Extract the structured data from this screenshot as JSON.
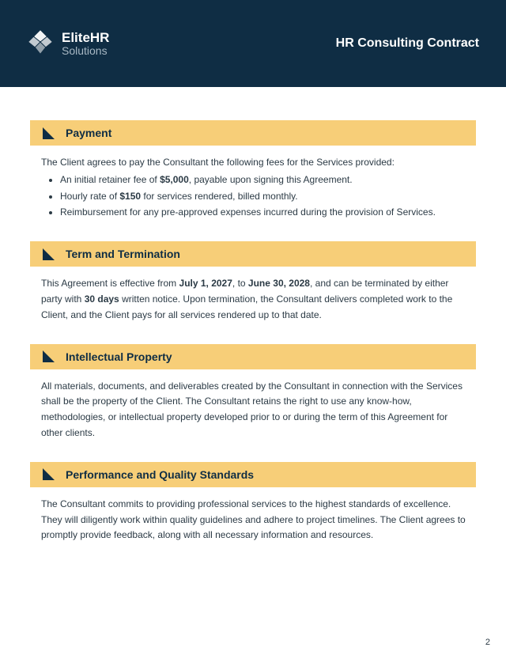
{
  "colors": {
    "header_bg": "#0f2d44",
    "accent_bg": "#f7ce78",
    "triangle": "#0f2d44",
    "text": "#2b3a45",
    "white": "#ffffff",
    "brand_sub": "#a8b8c4"
  },
  "header": {
    "brand_main": "EliteHR",
    "brand_sub": "Solutions",
    "doc_title": "HR Consulting Contract"
  },
  "sections": [
    {
      "title": "Payment",
      "intro": "The Client agrees to pay the Consultant the following fees for the Services provided:",
      "bullets": [
        "An initial retainer fee of <b>$5,000</b>, payable upon signing this Agreement.",
        "Hourly rate of <b>$150</b> for services rendered, billed monthly.",
        "Reimbursement for any pre-approved expenses incurred during the provision of Services."
      ]
    },
    {
      "title": "Term and Termination",
      "body": "This Agreement is effective from <b>July 1, 2027</b>, to <b>June 30, 2028</b>, and can be terminated by either party with <b>30 days</b> written notice. Upon termination, the Consultant delivers completed work to the Client, and the Client pays for all services rendered up to that date."
    },
    {
      "title": "Intellectual Property",
      "body": "All materials, documents, and deliverables created by the Consultant in connection with the Services shall be the property of the Client. The Consultant retains the right to use any know-how, methodologies, or intellectual property developed prior to or during the term of this Agreement for other clients."
    },
    {
      "title": "Performance and Quality Standards",
      "body": "The Consultant commits to providing professional services to the highest standards of excellence. They will diligently work within quality guidelines and adhere to project timelines. The Client agrees to promptly provide feedback, along with all necessary information and resources."
    }
  ],
  "page_number": "2"
}
